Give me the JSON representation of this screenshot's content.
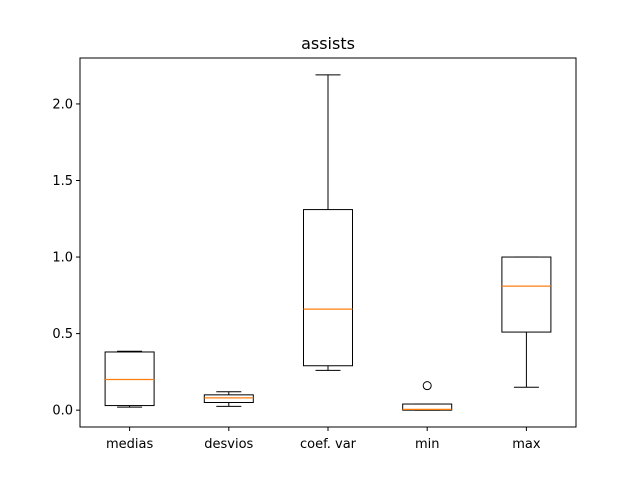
{
  "chart_data": {
    "type": "box",
    "title": "assists",
    "xlabel": "",
    "ylabel": "",
    "categories": [
      "medias",
      "desvios",
      "coef. var",
      "min",
      "max"
    ],
    "boxes": [
      {
        "label": "medias",
        "whislo": 0.02,
        "q1": 0.03,
        "median": 0.2,
        "q3": 0.38,
        "whishi": 0.385,
        "fliers": []
      },
      {
        "label": "desvios",
        "whislo": 0.025,
        "q1": 0.05,
        "median": 0.08,
        "q3": 0.1,
        "whishi": 0.12,
        "fliers": []
      },
      {
        "label": "coef. var",
        "whislo": 0.26,
        "q1": 0.29,
        "median": 0.66,
        "q3": 1.31,
        "whishi": 2.19,
        "fliers": []
      },
      {
        "label": "min",
        "whislo": 0.0,
        "q1": 0.0,
        "median": 0.005,
        "q3": 0.04,
        "whishi": 0.04,
        "fliers": [
          0.16
        ]
      },
      {
        "label": "max",
        "whislo": 0.15,
        "q1": 0.51,
        "median": 0.81,
        "q3": 1.0,
        "whishi": 1.0,
        "fliers": []
      }
    ],
    "ylim": [
      -0.11,
      2.3
    ],
    "yticks": [
      0.0,
      0.5,
      1.0,
      1.5,
      2.0
    ],
    "ytick_labels": [
      "0.0",
      "0.5",
      "1.0",
      "1.5",
      "2.0"
    ],
    "grid": false,
    "colors": {
      "box": "#000000",
      "median": "#ff7f0e",
      "background": "#ffffff"
    }
  }
}
